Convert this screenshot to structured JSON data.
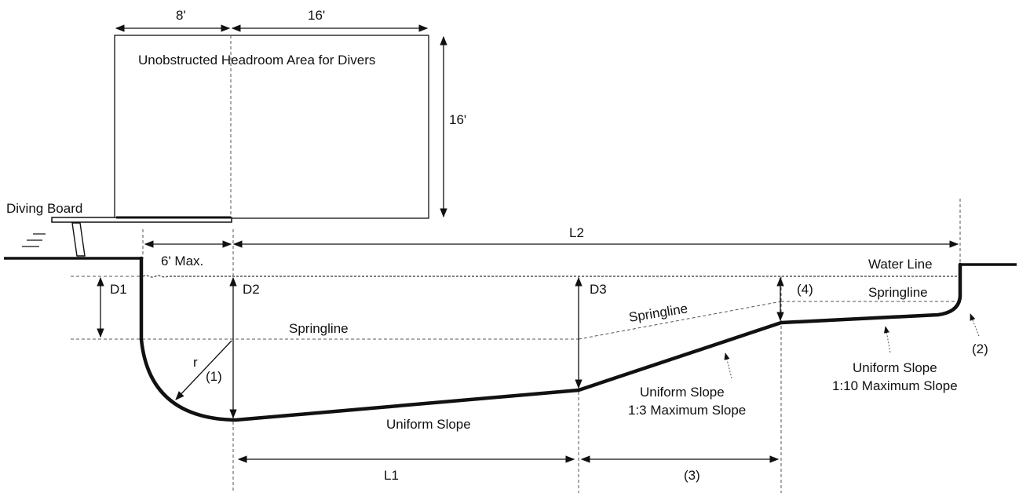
{
  "labels": {
    "headroom_title": "Unobstructed Headroom Area for Divers",
    "dim_8ft": "8'",
    "dim_16ft_top": "16'",
    "dim_16ft_side": "16'",
    "diving_board": "Diving Board",
    "l2": "L2",
    "six_ft_max": "6' Max.",
    "water_line": "Water Line",
    "d1": "D1",
    "d2": "D2",
    "d3": "D3",
    "note_4": "(4)",
    "springline_right": "Springline",
    "springline_slanted": "Springline",
    "springline_left": "Springline",
    "r": "r",
    "note_1": "(1)",
    "note_2": "(2)",
    "uniform_slope_bottom": "Uniform Slope",
    "uniform_slope_mid_1": "Uniform Slope",
    "uniform_slope_mid_2": "1:3 Maximum Slope",
    "uniform_slope_right_1": "Uniform Slope",
    "uniform_slope_right_2": "1:10 Maximum Slope",
    "l1": "L1",
    "note_3": "(3)"
  }
}
